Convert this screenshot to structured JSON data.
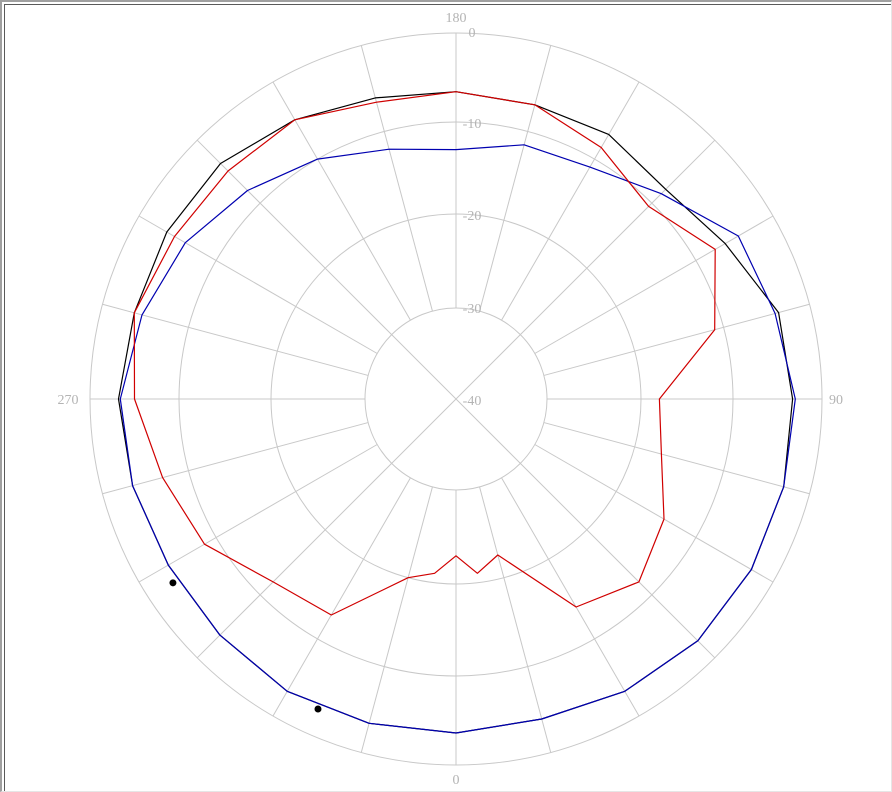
{
  "chart_data": {
    "type": "polar",
    "angle_unit": "degrees",
    "angle_labels": [
      "180",
      "90",
      "0",
      "270"
    ],
    "angle_label_positions_deg": [
      180,
      90,
      0,
      270
    ],
    "radial_tick_labels": [
      "0",
      "-10",
      "-20",
      "-30",
      "-40"
    ],
    "radial_range": [
      -40,
      0
    ],
    "spoke_step_deg": 15,
    "grid": true,
    "series": [
      {
        "color": "#000000",
        "points": [
          [
            0,
            -3.6
          ],
          [
            15,
            -3.9
          ],
          [
            30,
            -3.2
          ],
          [
            45,
            -2.7
          ],
          [
            60,
            -2.8
          ],
          [
            75,
            -3.0
          ],
          [
            90,
            -3.3
          ],
          [
            105,
            -3.6
          ],
          [
            120,
            -6.2
          ],
          [
            135,
            -7.8
          ],
          [
            150,
            -6.8
          ],
          [
            165,
            -6.9
          ],
          [
            180,
            -6.6
          ],
          [
            195,
            -6.1
          ],
          [
            210,
            -4.9
          ],
          [
            225,
            -3.7
          ],
          [
            240,
            -3.6
          ],
          [
            255,
            -3.7
          ],
          [
            270,
            -3.2
          ],
          [
            285,
            -3.5
          ],
          [
            300,
            -3.8
          ],
          [
            315,
            -3.6
          ],
          [
            330,
            -3.2
          ],
          [
            345,
            -3.4
          ],
          [
            360,
            -3.6
          ]
        ],
        "markers": [
          [
            336,
            -3.0
          ],
          [
            303,
            -3.2
          ]
        ]
      },
      {
        "color": "#0000b0",
        "points": [
          [
            0,
            -3.6
          ],
          [
            15,
            -3.9
          ],
          [
            30,
            -3.2
          ],
          [
            45,
            -2.7
          ],
          [
            60,
            -2.8
          ],
          [
            75,
            -3.0
          ],
          [
            90,
            -3.0
          ],
          [
            105,
            -4.0
          ],
          [
            120,
            -4.5
          ],
          [
            135,
            -8.5
          ],
          [
            150,
            -11.0
          ],
          [
            165,
            -11.5
          ],
          [
            180,
            -13.0
          ],
          [
            195,
            -12.0
          ],
          [
            210,
            -10.0
          ],
          [
            225,
            -8.0
          ],
          [
            240,
            -6.0
          ],
          [
            255,
            -4.6
          ],
          [
            270,
            -3.4
          ],
          [
            285,
            -3.5
          ],
          [
            300,
            -3.8
          ],
          [
            315,
            -3.6
          ],
          [
            330,
            -3.2
          ],
          [
            345,
            -3.4
          ],
          [
            360,
            -3.6
          ]
        ]
      },
      {
        "color": "#d00000",
        "points": [
          [
            0,
            -23.0
          ],
          [
            7,
            -21.0
          ],
          [
            15,
            -22.5
          ],
          [
            30,
            -14.0
          ],
          [
            45,
            -12.0
          ],
          [
            60,
            -14.0
          ],
          [
            75,
            -17.0
          ],
          [
            90,
            -18.0
          ],
          [
            105,
            -11.0
          ],
          [
            120,
            -7.5
          ],
          [
            135,
            -10.5
          ],
          [
            150,
            -8.5
          ],
          [
            165,
            -6.9
          ],
          [
            180,
            -6.6
          ],
          [
            195,
            -6.6
          ],
          [
            210,
            -4.9
          ],
          [
            225,
            -4.9
          ],
          [
            240,
            -4.6
          ],
          [
            255,
            -3.7
          ],
          [
            270,
            -5.0
          ],
          [
            285,
            -7.0
          ],
          [
            300,
            -8.5
          ],
          [
            315,
            -12.0
          ],
          [
            330,
            -13.0
          ],
          [
            345,
            -20.0
          ],
          [
            353,
            -21.0
          ],
          [
            360,
            -23.0
          ]
        ]
      }
    ]
  }
}
